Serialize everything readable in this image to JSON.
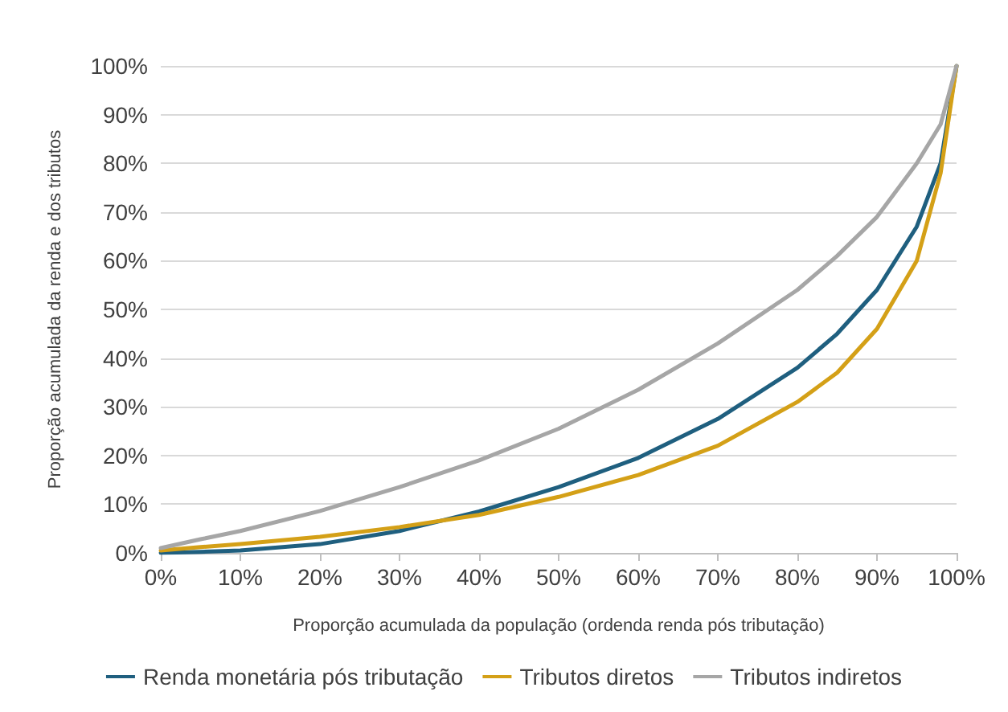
{
  "chart_data": {
    "type": "line",
    "xlabel": "Proporção acumulada da população (ordenda renda pós tributação)",
    "ylabel": "Proporção acumulada da renda e dos tributos",
    "x": [
      0,
      5,
      10,
      20,
      30,
      40,
      50,
      60,
      70,
      80,
      85,
      90,
      95,
      98,
      100
    ],
    "series": [
      {
        "name": "Renda monetária pós tributação",
        "color": "#1f5f7f",
        "values": [
          0,
          0.2,
          0.5,
          1.8,
          4.5,
          8.5,
          13.5,
          19.5,
          27.5,
          38,
          45,
          54,
          67,
          80,
          100
        ]
      },
      {
        "name": "Tributos diretos",
        "color": "#d4a017",
        "values": [
          0.5,
          1.2,
          1.8,
          3.3,
          5.3,
          7.8,
          11.5,
          16,
          22,
          31,
          37,
          46,
          60,
          78,
          100
        ]
      },
      {
        "name": "Tributos indiretos",
        "color": "#a6a6a6",
        "values": [
          1,
          2.8,
          4.5,
          8.6,
          13.5,
          19,
          25.5,
          33.5,
          43,
          54,
          61,
          69,
          80,
          88,
          100
        ]
      }
    ],
    "xlim": [
      0,
      100
    ],
    "xticks": [
      {
        "value": 0,
        "label": "0%"
      },
      {
        "value": 10,
        "label": "10%"
      },
      {
        "value": 20,
        "label": "20%"
      },
      {
        "value": 30,
        "label": "30%"
      },
      {
        "value": 40,
        "label": "40%"
      },
      {
        "value": 50,
        "label": "50%"
      },
      {
        "value": 60,
        "label": "60%"
      },
      {
        "value": 70,
        "label": "70%"
      },
      {
        "value": 80,
        "label": "80%"
      },
      {
        "value": 90,
        "label": "90%"
      },
      {
        "value": 100,
        "label": "100%"
      }
    ],
    "ylim": [
      0,
      100
    ],
    "yticks": [
      {
        "value": 0,
        "label": "0%"
      },
      {
        "value": 10,
        "label": "10%"
      },
      {
        "value": 20,
        "label": "20%"
      },
      {
        "value": 30,
        "label": "30%"
      },
      {
        "value": 40,
        "label": "40%"
      },
      {
        "value": 50,
        "label": "50%"
      },
      {
        "value": 60,
        "label": "60%"
      },
      {
        "value": 70,
        "label": "70%"
      },
      {
        "value": 80,
        "label": "80%"
      },
      {
        "value": 90,
        "label": "90%"
      },
      {
        "value": 100,
        "label": "100%"
      }
    ],
    "grid": "y",
    "legend": "bottom",
    "marker": "none",
    "line_style": "solid"
  }
}
